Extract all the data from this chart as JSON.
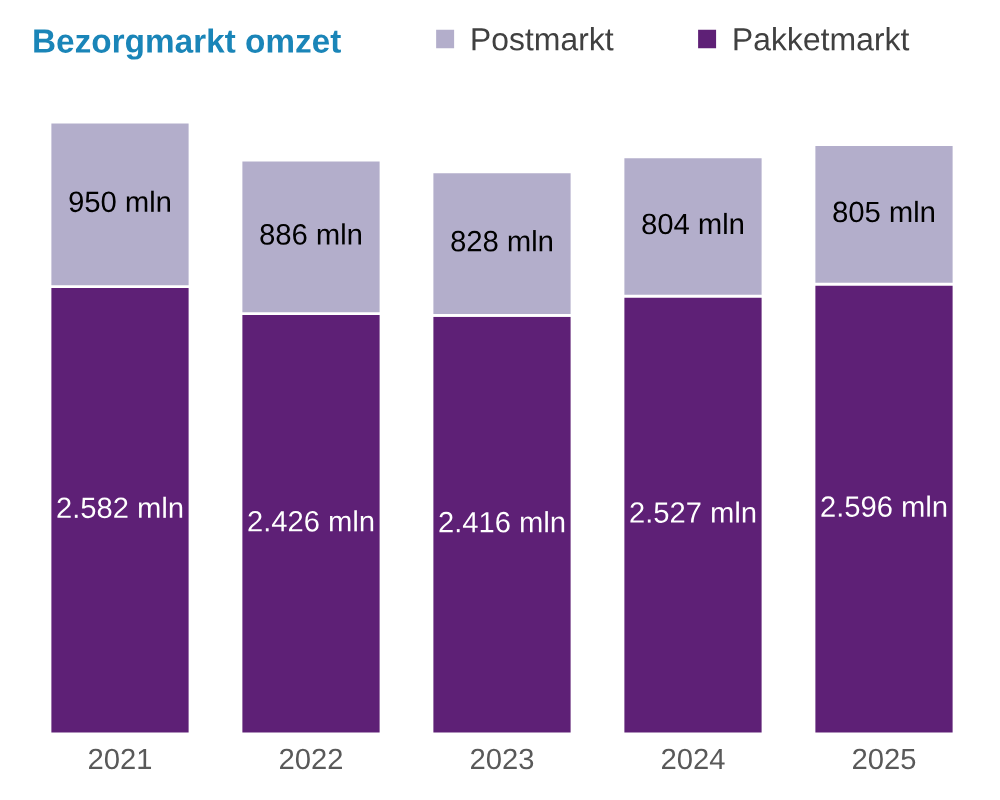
{
  "chart_data": {
    "type": "bar",
    "title": "Bezorgmarkt omzet",
    "categories": [
      "2021",
      "2022",
      "2023",
      "2024",
      "2025"
    ],
    "stacked": true,
    "series": [
      {
        "name": "Pakketmarkt",
        "color": "#5e2076",
        "values": [
          2582,
          2426,
          2416,
          2527,
          2596
        ],
        "value_labels": [
          "2.582 mln",
          "2.426 mln",
          "2.416 mln",
          "2.527 mln",
          "2.596 mln"
        ]
      },
      {
        "name": "Postmarkt",
        "color": "#b3aecb",
        "values": [
          950,
          886,
          828,
          804,
          805
        ],
        "value_labels": [
          "950 mln",
          "886 mln",
          "828 mln",
          "804 mln",
          "805 mln"
        ]
      }
    ],
    "legend": "top",
    "grid": false,
    "tick_labels": "x"
  }
}
